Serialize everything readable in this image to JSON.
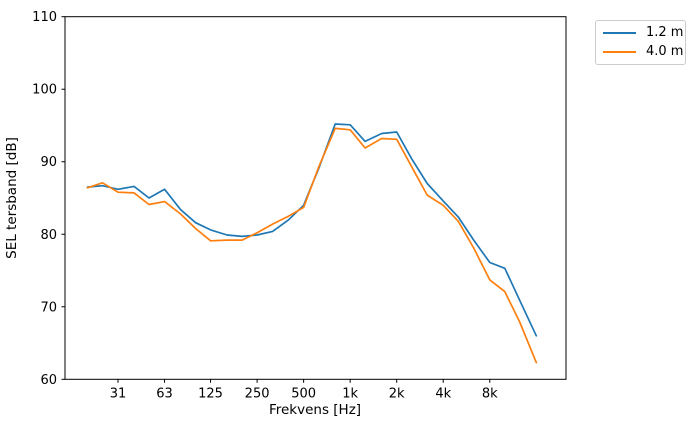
{
  "figure": {
    "background": "#ffffff",
    "spine_color": "#000000",
    "tick_color": "#000000"
  },
  "chart_data": {
    "type": "line",
    "title": "",
    "xlabel": "Frekvens [Hz]",
    "ylabel": "SEL tersband [dB]",
    "x_scale": "log",
    "grid": false,
    "legend_position": "outside-upper-right",
    "xlim": [
      14.3,
      24900
    ],
    "ylim": [
      60,
      110
    ],
    "y_ticks": [
      {
        "value": 60,
        "label": "60"
      },
      {
        "value": 70,
        "label": "70"
      },
      {
        "value": 80,
        "label": "80"
      },
      {
        "value": 90,
        "label": "90"
      },
      {
        "value": 100,
        "label": "100"
      },
      {
        "value": 110,
        "label": "110"
      }
    ],
    "x_ticks": [
      {
        "value": 31.5,
        "label": "31"
      },
      {
        "value": 63,
        "label": "63"
      },
      {
        "value": 125,
        "label": "125"
      },
      {
        "value": 250,
        "label": "250"
      },
      {
        "value": 500,
        "label": "500"
      },
      {
        "value": 1000,
        "label": "1k"
      },
      {
        "value": 2000,
        "label": "2k"
      },
      {
        "value": 4000,
        "label": "4k"
      },
      {
        "value": 8000,
        "label": "8k"
      }
    ],
    "x": [
      20,
      25,
      31.5,
      40,
      50,
      63,
      80,
      100,
      125,
      160,
      200,
      250,
      315,
      400,
      500,
      630,
      800,
      1000,
      1250,
      1600,
      2000,
      2500,
      3150,
      4000,
      5000,
      6300,
      8000,
      10000,
      12500,
      16000
    ],
    "series": [
      {
        "name": "1.2 m",
        "color": "#1f77b4",
        "values": [
          86.5,
          86.7,
          86.2,
          86.6,
          85.0,
          86.2,
          83.4,
          81.6,
          80.6,
          79.9,
          79.7,
          79.9,
          80.4,
          82.0,
          84.0,
          89.2,
          95.2,
          95.1,
          92.8,
          93.9,
          94.1,
          90.4,
          87.0,
          84.6,
          82.4,
          79.2,
          76.1,
          75.3,
          70.9,
          66.0
        ]
      },
      {
        "name": "4.0 m",
        "color": "#ff7f0e",
        "values": [
          86.4,
          87.1,
          85.8,
          85.7,
          84.1,
          84.5,
          82.8,
          80.8,
          79.1,
          79.2,
          79.2,
          80.2,
          81.4,
          82.5,
          83.7,
          89.4,
          94.6,
          94.4,
          91.9,
          93.2,
          93.1,
          89.3,
          85.4,
          84.0,
          81.8,
          78.1,
          73.7,
          72.1,
          67.9,
          62.3
        ]
      }
    ]
  }
}
